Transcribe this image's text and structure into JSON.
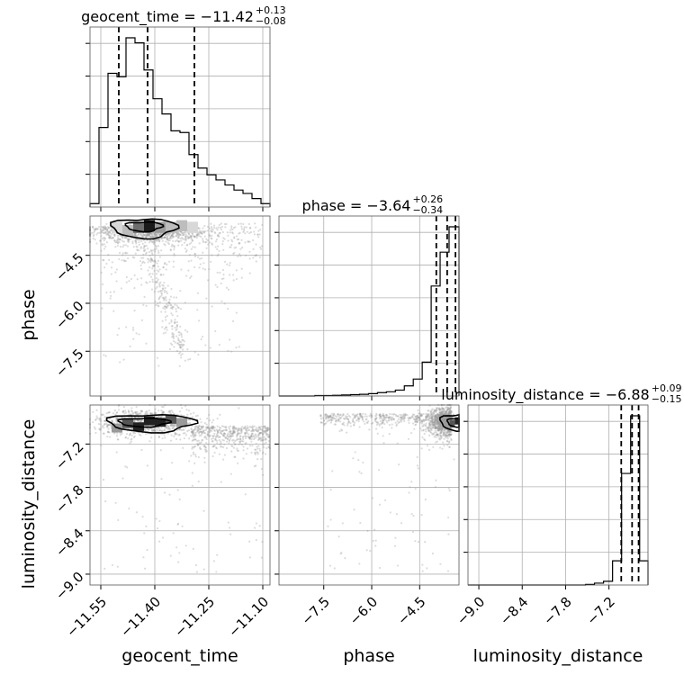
{
  "chart_data": {
    "type": "corner",
    "parameters": [
      "geocent_time",
      "phase",
      "luminosity_distance"
    ],
    "titles": [
      {
        "param": "geocent_time",
        "label": "geocent_time = −11.42",
        "plus": "+0.13",
        "minus": "−0.08"
      },
      {
        "param": "phase",
        "label": "phase = −3.64",
        "plus": "+0.26",
        "minus": "−0.34"
      },
      {
        "param": "luminosity_distance",
        "label": "luminosity_distance = −6.88",
        "plus": "+0.09",
        "minus": "−0.15"
      }
    ],
    "axis_labels": {
      "x": [
        "geocent_time",
        "phase",
        "luminosity_distance"
      ],
      "y": [
        "phase",
        "luminosity_distance"
      ]
    },
    "ticks": {
      "geocent_time": {
        "values": [
          -11.55,
          -11.4,
          -11.25,
          -11.1
        ],
        "labels": [
          "−11.55",
          "−11.40",
          "−11.25",
          "−11.10"
        ]
      },
      "phase": {
        "values": [
          -7.5,
          -6.0,
          -4.5
        ],
        "labels": [
          "−7.5",
          "−6.0",
          "−4.5"
        ]
      },
      "luminosity_distance": {
        "values": [
          -9.0,
          -8.4,
          -7.8,
          -7.2
        ],
        "labels": [
          "−9.0",
          "−8.4",
          "−7.8",
          "−7.2"
        ]
      }
    },
    "ranges": {
      "geocent_time": [
        -11.58,
        -11.08
      ],
      "phase": [
        -8.9,
        -3.27
      ],
      "luminosity_distance": [
        -9.15,
        -6.66
      ]
    },
    "marginals": {
      "geocent_time": {
        "bin_edges": [
          -11.58,
          -11.555,
          -11.53,
          -11.505,
          -11.48,
          -11.455,
          -11.43,
          -11.405,
          -11.38,
          -11.355,
          -11.33,
          -11.305,
          -11.28,
          -11.255,
          -11.23,
          -11.205,
          -11.18,
          -11.155,
          -11.13,
          -11.105,
          -11.08
        ],
        "counts": [
          2,
          47,
          79,
          77,
          100,
          97,
          81,
          64,
          55,
          45,
          44,
          31,
          23,
          19,
          16,
          13,
          10,
          8,
          5,
          2
        ],
        "quantiles": [
          -11.5,
          -11.42,
          -11.29
        ]
      },
      "phase": {
        "bin_edges": [
          -8.9,
          -8.62,
          -8.34,
          -8.06,
          -7.78,
          -7.5,
          -7.22,
          -6.94,
          -6.66,
          -6.38,
          -6.1,
          -5.82,
          -5.54,
          -5.26,
          -4.98,
          -4.7,
          -4.42,
          -4.14,
          -3.86,
          -3.58,
          -3.3,
          -3.27
        ],
        "counts": [
          0,
          0,
          0,
          0,
          0.3,
          0.3,
          0.4,
          0.6,
          0.8,
          1,
          1.4,
          2,
          2.5,
          3.5,
          6,
          10,
          20,
          65,
          85,
          100,
          100
        ],
        "quantiles": [
          -3.98,
          -3.64,
          -3.38
        ]
      },
      "luminosity_distance": {
        "bin_edges": [
          -9.15,
          -9.025,
          -8.9,
          -8.775,
          -8.65,
          -8.525,
          -8.4,
          -8.275,
          -8.15,
          -8.025,
          -7.9,
          -7.775,
          -7.65,
          -7.525,
          -7.4,
          -7.275,
          -7.15,
          -7.025,
          -6.9,
          -6.775,
          -6.66
        ],
        "counts": [
          0,
          0,
          0,
          0,
          0,
          0,
          0,
          0,
          0,
          0,
          0,
          0,
          0,
          0.3,
          1,
          2,
          13,
          60,
          91,
          13
        ],
        "quantiles": [
          -7.03,
          -6.88,
          -6.79
        ]
      }
    },
    "scatter_shape": [
      {
        "geocent_time": -11.55,
        "phase": -3.6
      },
      {
        "geocent_time": -11.45,
        "phase": -3.55
      },
      {
        "geocent_time": -11.38,
        "phase": -3.8
      },
      {
        "geocent_time": -11.3,
        "phase": -3.7
      },
      {
        "geocent_time": -11.15,
        "phase": -3.45
      },
      {
        "geocent_time": -11.42,
        "phase": -5.5
      },
      {
        "geocent_time": -11.35,
        "phase": -7.0
      },
      {
        "geocent_time": -11.5,
        "luminosity_distance": -6.95
      },
      {
        "geocent_time": -11.4,
        "luminosity_distance": -6.85
      },
      {
        "geocent_time": -11.15,
        "luminosity_distance": -7.1
      },
      {
        "phase": -3.5,
        "luminosity_distance": -6.85
      },
      {
        "phase": -5.5,
        "luminosity_distance": -6.95
      }
    ],
    "grid": true,
    "colors": {
      "hist": "#000000",
      "points": "#9a9a9a",
      "density_dark": "#222222",
      "grid": "#b0b0b0"
    }
  }
}
